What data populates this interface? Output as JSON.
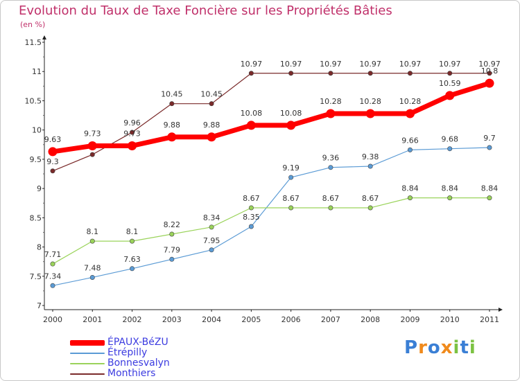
{
  "chart_data": {
    "type": "line",
    "title": "Evolution du Taux de Taxe Foncière sur les Propriétés Bâties",
    "unit_label": "(en %)",
    "xlabel": "",
    "ylabel": "",
    "categories": [
      "2000",
      "2001",
      "2002",
      "2003",
      "2004",
      "2005",
      "2006",
      "2007",
      "2008",
      "2009",
      "2010",
      "2011"
    ],
    "ylim": [
      7,
      11.5
    ],
    "yticks": [
      7,
      7.5,
      8,
      8.5,
      9,
      9.5,
      10,
      10.5,
      11,
      11.5
    ],
    "ytick_labels": [
      "7",
      "7.5",
      "8",
      "8.5",
      "9",
      "9.5",
      "10",
      "10.5",
      "11",
      "11.5"
    ],
    "grid": false,
    "legend_position": "bottom-left",
    "series": [
      {
        "name": "Monthiers",
        "color": "#7a2a2a",
        "values": [
          9.3,
          9.58,
          9.96,
          10.45,
          10.45,
          10.97,
          10.97,
          10.97,
          10.97,
          10.97,
          10.97,
          10.97
        ],
        "labels": [
          "9.3",
          "",
          "9.96",
          "10.45",
          "10.45",
          "10.97",
          "10.97",
          "10.97",
          "10.97",
          "10.97",
          "10.97",
          "10.97"
        ]
      },
      {
        "name": "Étrépilly",
        "color": "#5b9bd5",
        "values": [
          7.34,
          7.48,
          7.63,
          7.79,
          7.95,
          8.35,
          9.19,
          9.36,
          9.38,
          9.66,
          9.68,
          9.7
        ],
        "labels": [
          "7.34",
          "7.48",
          "7.63",
          "7.79",
          "7.95",
          "8.35",
          "9.19",
          "9.36",
          "9.38",
          "9.66",
          "9.68",
          "9.7"
        ]
      },
      {
        "name": "Bonnesvalyn",
        "color": "#9ad35a",
        "values": [
          7.71,
          8.1,
          8.1,
          8.22,
          8.34,
          8.67,
          8.67,
          8.67,
          8.67,
          8.84,
          8.84,
          8.84
        ],
        "labels": [
          "7.71",
          "8.1",
          "8.1",
          "8.22",
          "8.34",
          "8.67",
          "8.67",
          "8.67",
          "8.67",
          "8.84",
          "8.84",
          "8.84"
        ]
      },
      {
        "name": "ÉPAUX-BéZU",
        "color": "#ff0000",
        "values": [
          9.63,
          9.73,
          9.73,
          9.88,
          9.88,
          10.08,
          10.08,
          10.28,
          10.28,
          10.28,
          10.59,
          10.8
        ],
        "labels": [
          "9.63",
          "9.73",
          "9.73",
          "9.88",
          "9.88",
          "10.08",
          "10.08",
          "10.28",
          "10.28",
          "10.28",
          "10.59",
          "10.8"
        ]
      }
    ],
    "legend": [
      {
        "name": "ÉPAUX-BéZU",
        "color": "#ff0000",
        "thick": true
      },
      {
        "name": "Étrépilly",
        "color": "#5b9bd5",
        "thick": false
      },
      {
        "name": "Bonnesvalyn",
        "color": "#9ad35a",
        "thick": false
      },
      {
        "name": "Monthiers",
        "color": "#7a2a2a",
        "thick": false
      }
    ]
  },
  "logo": {
    "letters": [
      "P",
      "r",
      "o",
      "x",
      "i",
      "t",
      "i"
    ],
    "colors": [
      "#3a7fd5",
      "#f08a1c",
      "#3a7fd5",
      "#f08a1c",
      "#7cc242",
      "#3a7fd5",
      "#7cc242"
    ]
  }
}
